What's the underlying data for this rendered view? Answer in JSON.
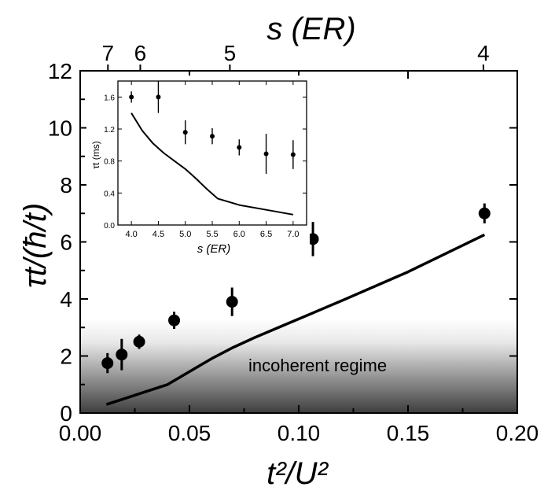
{
  "chart_data": [
    {
      "type": "scatter",
      "role": "main",
      "xlabel": "t²/U²",
      "ylabel": "τt/(ħ/t)",
      "top_axis_label": "s (ER)",
      "xlim": [
        0.0,
        0.2
      ],
      "ylim": [
        0,
        12
      ],
      "x_ticks": [
        "0.00",
        "0.05",
        "0.10",
        "0.15",
        "0.20"
      ],
      "x_tick_values": [
        0.0,
        0.05,
        0.1,
        0.15,
        0.2
      ],
      "y_ticks": [
        "0",
        "2",
        "4",
        "6",
        "8",
        "10",
        "12"
      ],
      "y_tick_values": [
        0,
        2,
        4,
        6,
        8,
        10,
        12
      ],
      "top_ticks": [
        "7",
        "6",
        "5",
        "4"
      ],
      "top_tick_x": [
        0.0127,
        0.0275,
        0.0685,
        0.1845
      ],
      "points": {
        "x": [
          0.0125,
          0.019,
          0.027,
          0.043,
          0.0695,
          0.1065,
          0.185
        ],
        "y": [
          1.75,
          2.05,
          2.5,
          3.25,
          3.9,
          6.1,
          7.0
        ],
        "err": [
          0.35,
          0.55,
          0.25,
          0.3,
          0.5,
          0.6,
          0.35
        ]
      },
      "theory_line": {
        "x": [
          0.012,
          0.02,
          0.03,
          0.04,
          0.05,
          0.06,
          0.07,
          0.08,
          0.1,
          0.12,
          0.15,
          0.185
        ],
        "y": [
          0.3,
          0.5,
          0.75,
          1.0,
          1.45,
          1.9,
          2.3,
          2.65,
          3.3,
          3.95,
          4.95,
          6.25
        ]
      },
      "shaded_region_top": 3.3,
      "annotation": "incoherent regime"
    },
    {
      "type": "scatter",
      "role": "inset",
      "xlabel": "s (ER)",
      "ylabel": "τt (ms)",
      "xlim": [
        3.75,
        7.25
      ],
      "ylim": [
        0.0,
        1.8
      ],
      "x_ticks": [
        "4.0",
        "4.5",
        "5.0",
        "5.5",
        "6.0",
        "6.5",
        "7.0"
      ],
      "x_tick_values": [
        4.0,
        4.5,
        5.0,
        5.5,
        6.0,
        6.5,
        7.0
      ],
      "y_ticks": [
        "0.0",
        "0.4",
        "0.8",
        "1.2",
        "1.6"
      ],
      "y_tick_values": [
        0.0,
        0.4,
        0.8,
        1.2,
        1.6
      ],
      "points": {
        "x": [
          4.0,
          4.5,
          5.0,
          5.5,
          6.0,
          6.5,
          7.0
        ],
        "y": [
          1.6,
          1.6,
          1.16,
          1.11,
          0.97,
          0.89,
          0.88
        ],
        "err": [
          0.07,
          0.2,
          0.15,
          0.1,
          0.1,
          0.25,
          0.18
        ]
      },
      "theory_line": {
        "x": [
          4.0,
          4.2,
          4.4,
          4.6,
          4.8,
          5.0,
          5.2,
          5.4,
          5.6,
          6.0,
          6.5,
          7.0
        ],
        "y": [
          1.4,
          1.18,
          1.02,
          0.9,
          0.8,
          0.7,
          0.58,
          0.45,
          0.33,
          0.25,
          0.19,
          0.13
        ]
      }
    }
  ]
}
